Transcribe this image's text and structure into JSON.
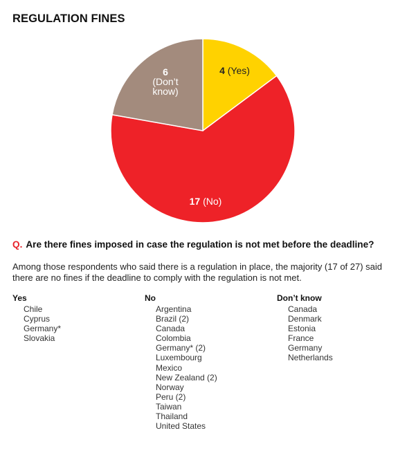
{
  "title": "REGULATION FINES",
  "chart_data": {
    "type": "pie",
    "slices": [
      {
        "count": "4",
        "label": "(Yes)",
        "value": 4,
        "color": "#FFD200"
      },
      {
        "count": "17",
        "label": "(No)",
        "value": 17,
        "color": "#EE2228"
      },
      {
        "count": "6",
        "label_lines": [
          "(Don’t",
          "know)"
        ],
        "value": 6,
        "color": "#A38B7D"
      }
    ],
    "legend": "none"
  },
  "question": {
    "marker": "Q.",
    "text": "Are there fines imposed in case the regulation is not met before the deadline?"
  },
  "summary": "Among those respondents who said there is a regulation in place, the majority (17 of 27) said there are no fines if the deadline to comply with the regulation is not met.",
  "columns": [
    {
      "heading": "Yes",
      "items": [
        "Chile",
        "Cyprus",
        "Germany*",
        "Slovakia"
      ]
    },
    {
      "heading": "No",
      "items": [
        "Argentina",
        "Brazil (2)",
        "Canada",
        "Colombia",
        "Germany* (2)",
        "Luxembourg",
        "Mexico",
        "New Zealand (2)",
        "Norway",
        "Peru (2)",
        "Taiwan",
        "Thailand",
        "United States"
      ]
    },
    {
      "heading": "Don’t know",
      "items": [
        "Canada",
        "Denmark",
        "Estonia",
        "France",
        "Germany",
        "Netherlands"
      ]
    }
  ]
}
